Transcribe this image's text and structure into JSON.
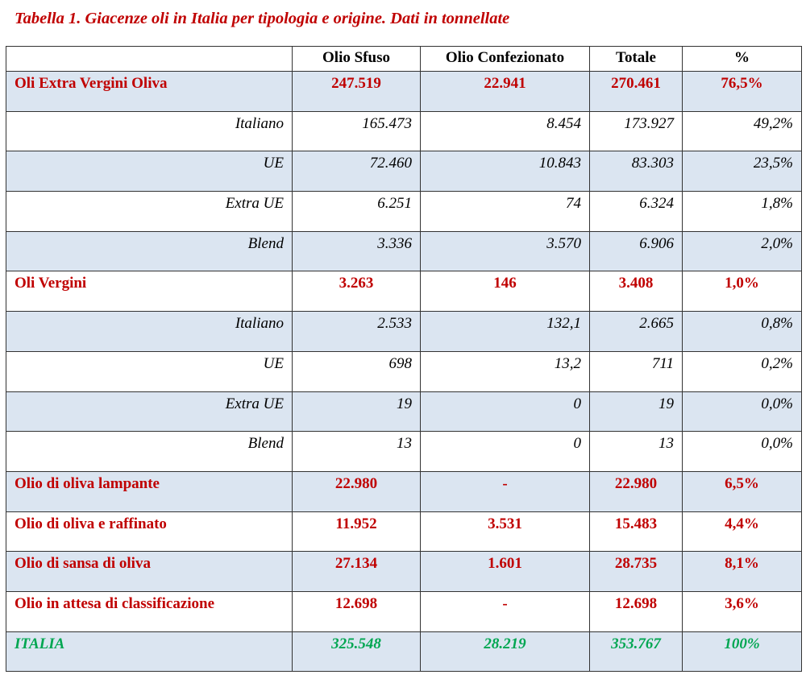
{
  "title": "Tabella 1. Giacenze oli in Italia per tipologia e origine. Dati in tonnellate",
  "headers": [
    "",
    "Olio Sfuso",
    "Olio Confezionato",
    "Totale",
    "%"
  ],
  "colors": {
    "category": "#c00000",
    "total": "#00a651",
    "band": "#dbe5f1"
  },
  "rows": [
    {
      "type": "cat",
      "cells": [
        "Oli Extra Vergini Oliva",
        "247.519",
        "22.941",
        "270.461",
        "76,5%"
      ]
    },
    {
      "type": "sub",
      "cells": [
        "Italiano",
        "165.473",
        "8.454",
        "173.927",
        "49,2%"
      ]
    },
    {
      "type": "sub",
      "cells": [
        "UE",
        "72.460",
        "10.843",
        "83.303",
        "23,5%"
      ]
    },
    {
      "type": "sub",
      "cells": [
        "Extra UE",
        "6.251",
        "74",
        "6.324",
        "1,8%"
      ]
    },
    {
      "type": "sub",
      "cells": [
        "Blend",
        "3.336",
        "3.570",
        "6.906",
        "2,0%"
      ]
    },
    {
      "type": "cat",
      "cells": [
        "Oli Vergini",
        "3.263",
        "146",
        "3.408",
        "1,0%"
      ]
    },
    {
      "type": "sub",
      "cells": [
        "Italiano",
        "2.533",
        "132,1",
        "2.665",
        "0,8%"
      ]
    },
    {
      "type": "sub",
      "cells": [
        "UE",
        "698",
        "13,2",
        "711",
        "0,2%"
      ]
    },
    {
      "type": "sub",
      "cells": [
        "Extra UE",
        "19",
        "0",
        "19",
        "0,0%"
      ]
    },
    {
      "type": "sub",
      "cells": [
        "Blend",
        "13",
        "0",
        "13",
        "0,0%"
      ]
    },
    {
      "type": "cat",
      "cells": [
        "Olio di oliva lampante",
        "22.980",
        "-",
        "22.980",
        "6,5%"
      ]
    },
    {
      "type": "cat",
      "cells": [
        "Olio di oliva e raffinato",
        "11.952",
        "3.531",
        "15.483",
        "4,4%"
      ]
    },
    {
      "type": "cat",
      "cells": [
        "Olio di sansa di oliva",
        "27.134",
        "1.601",
        "28.735",
        "8,1%"
      ]
    },
    {
      "type": "cat",
      "cells": [
        "Olio in attesa di classificazione",
        "12.698",
        "-",
        "12.698",
        "3,6%"
      ]
    },
    {
      "type": "tot",
      "cells": [
        "ITALIA",
        "325.548",
        "28.219",
        "353.767",
        "100%"
      ]
    }
  ]
}
